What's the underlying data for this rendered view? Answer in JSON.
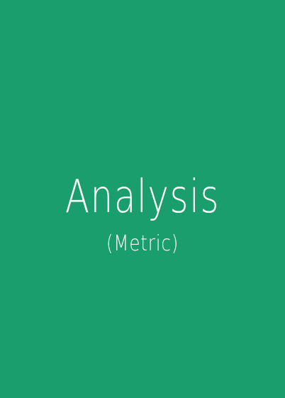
{
  "cover": {
    "title": "Analysis",
    "subtitle": "(Metric)",
    "background_color": "#1b9e6e",
    "text_color": "#ffffff"
  }
}
